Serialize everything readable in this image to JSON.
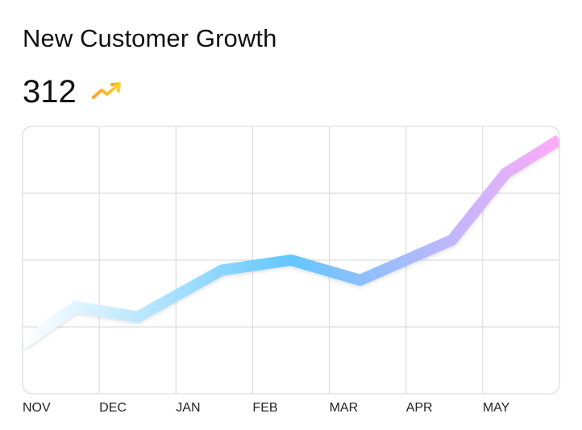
{
  "header": {
    "title": "New Customer Growth",
    "value": "312",
    "trend_icon": "trending-up-icon"
  },
  "colors": {
    "line_start": "#ffffff",
    "line_mid": "#63c7ff",
    "line_end": "#ffabf8",
    "trend_start": "#f4a62a",
    "trend_end": "#ffd12f",
    "grid": "#dddddd"
  },
  "chart_data": {
    "type": "line",
    "categories": [
      "NOV",
      "DEC",
      "JAN",
      "FEB",
      "MAR",
      "APR",
      "MAY"
    ],
    "series": [
      {
        "name": "",
        "x": [
          0,
          0.7,
          1.5,
          2.6,
          3.5,
          4.4,
          5.6,
          6.3,
          7.0
        ],
        "values": [
          0.75,
          1.3,
          1.15,
          1.85,
          2.0,
          1.7,
          2.3,
          3.3,
          3.8
        ]
      }
    ],
    "xlim": [
      0,
      7
    ],
    "ylim": [
      0,
      4
    ],
    "grid": true,
    "xlabel": "",
    "ylabel": "",
    "legend": "none"
  }
}
